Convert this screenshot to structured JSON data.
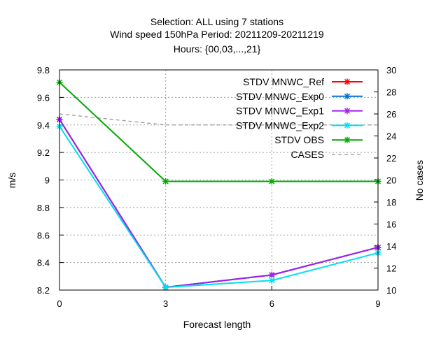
{
  "title_lines": [
    "Selection: ALL using     7 stations",
    "Wind speed 150hPa   Period: 20211209-20211219",
    "Hours: {00,03,...,21}"
  ],
  "chart_data": {
    "type": "line",
    "xlabel": "Forecast length",
    "ylabel": "m/s",
    "y2label": "No cases",
    "x": [
      0,
      3,
      6,
      9
    ],
    "xlim": [
      0,
      9
    ],
    "ylim": [
      8.2,
      9.8
    ],
    "y2lim": [
      10,
      30
    ],
    "xticks": [
      "0",
      "3",
      "6",
      "9"
    ],
    "yticks": [
      "8.2",
      "8.4",
      "8.6",
      "8.8",
      "9",
      "9.2",
      "9.4",
      "9.6",
      "9.8"
    ],
    "y2ticks": [
      "10",
      "12",
      "14",
      "16",
      "18",
      "20",
      "22",
      "24",
      "26",
      "28",
      "30"
    ],
    "grid": true,
    "legend_position": "top-right",
    "series": [
      {
        "name": "STDV MNWC_Ref",
        "values": [
          9.44,
          8.22,
          8.31,
          8.51
        ],
        "color": "#ff0000",
        "axis": "y"
      },
      {
        "name": "STDV MNWC_Exp0",
        "values": [
          9.44,
          8.22,
          8.31,
          8.51
        ],
        "color": "#0072d6",
        "axis": "y"
      },
      {
        "name": "STDV MNWC_Exp1",
        "values": [
          9.44,
          8.22,
          8.31,
          8.51
        ],
        "color": "#a020f0",
        "axis": "y"
      },
      {
        "name": "STDV MNWC_Exp2",
        "values": [
          9.39,
          8.22,
          8.27,
          8.47
        ],
        "color": "#00e0f0",
        "axis": "y"
      },
      {
        "name": "STDV OBS",
        "values": [
          9.71,
          8.99,
          8.99,
          8.99
        ],
        "color": "#00aa00",
        "axis": "y"
      },
      {
        "name": "CASES",
        "values": [
          26,
          25,
          25,
          25
        ],
        "color": "#999999",
        "axis": "y2",
        "dashed": true
      }
    ]
  }
}
